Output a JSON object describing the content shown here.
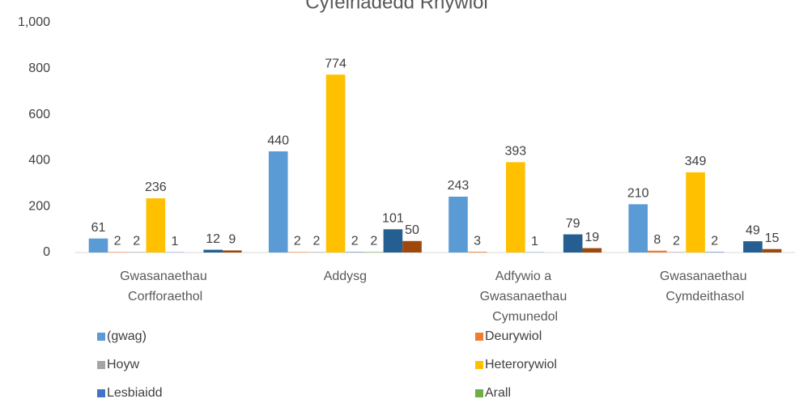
{
  "chart_data": {
    "type": "bar",
    "title": "Cyfeiriadedd Rhywiol",
    "categories": [
      "Gwasanaethau Corfforaethol",
      "Addysg",
      "Adfywio a Gwasanaethau Cymunedol",
      "Gwasanaethau Cymdeithasol"
    ],
    "series": [
      {
        "name": "(gwag)",
        "color": "#5b9bd5",
        "values": [
          61,
          440,
          243,
          210
        ]
      },
      {
        "name": "Deurywiol",
        "color": "#ed7d31",
        "values": [
          2,
          2,
          3,
          8
        ]
      },
      {
        "name": "Hoyw",
        "color": "#a5a5a5",
        "values": [
          2,
          2,
          null,
          2
        ]
      },
      {
        "name": "Heterorywiol",
        "color": "#ffc000",
        "values": [
          236,
          774,
          393,
          349
        ]
      },
      {
        "name": "Lesbiaidd",
        "color": "#4472c4",
        "values": [
          1,
          2,
          1,
          2
        ]
      },
      {
        "name": "Arall",
        "color": "#70ad47",
        "values": [
          null,
          2,
          null,
          null
        ]
      },
      {
        "color": "#255e91",
        "values": [
          12,
          101,
          79,
          49
        ]
      },
      {
        "color": "#9e480e",
        "values": [
          9,
          50,
          19,
          15
        ]
      }
    ],
    "ylim": [
      0,
      1000
    ],
    "yticks": [
      0,
      200,
      400,
      600,
      800,
      {
        "value": 1000,
        "label": "1,000"
      }
    ],
    "grid": false
  }
}
